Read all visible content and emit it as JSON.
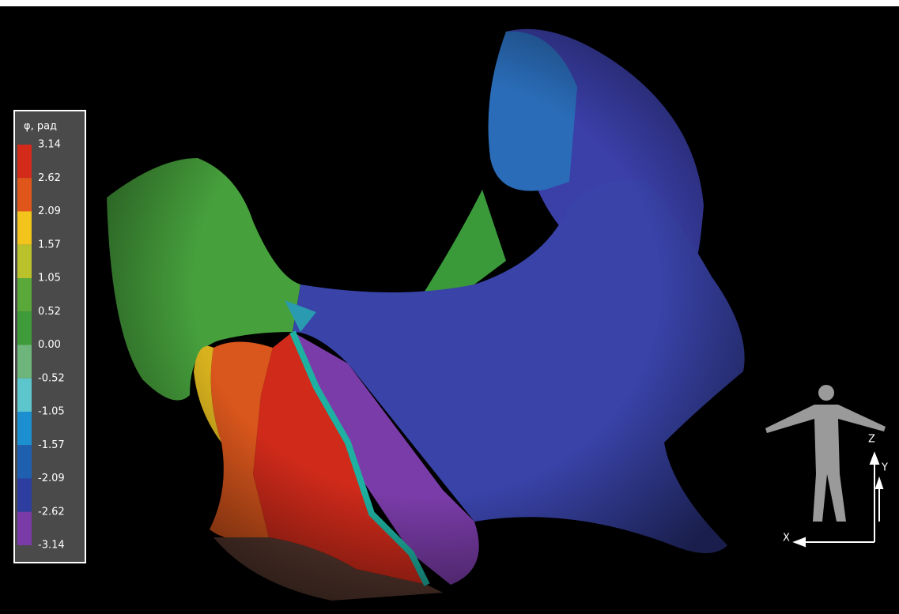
{
  "legend": {
    "title": "φ, рад",
    "ticks": [
      "3.14",
      "2.62",
      "2.09",
      "1.57",
      "1.05",
      "0.52",
      "0.00",
      "-0.52",
      "-1.05",
      "-1.57",
      "-2.09",
      "-2.62",
      "-3.14"
    ],
    "colors": [
      "#d42a1a",
      "#e0561a",
      "#f2c41c",
      "#b9c22a",
      "#5aa83a",
      "#3f9a3a",
      "#6db57a",
      "#5cc6cc",
      "#1b8fd0",
      "#1f5fb0",
      "#2d3ea0",
      "#7a3aa8"
    ]
  },
  "axes": {
    "x": "X",
    "y": "Y",
    "z": "Z"
  }
}
